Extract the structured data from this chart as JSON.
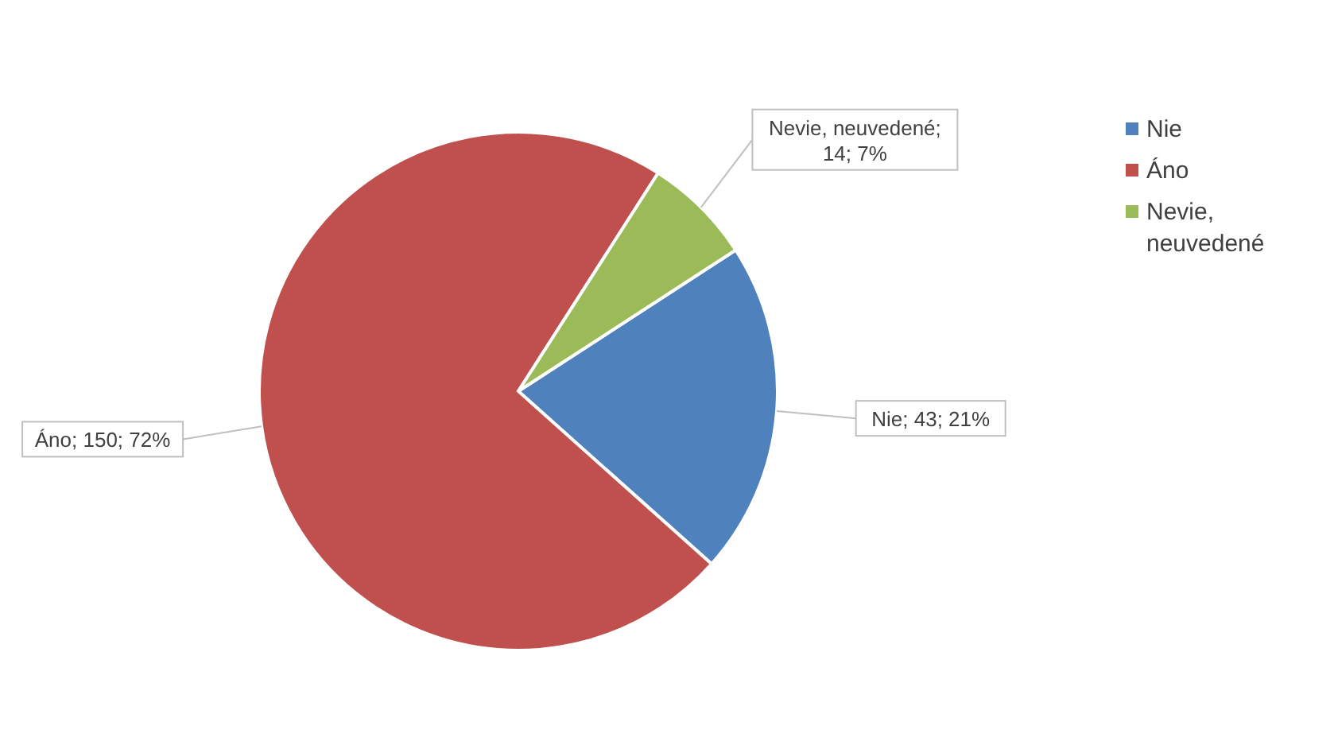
{
  "chart_data": {
    "type": "pie",
    "categories": [
      "Nie",
      "Áno",
      "Nevie, neuvedené"
    ],
    "values": [
      43,
      150,
      14
    ],
    "colors": [
      "#4f81bd",
      "#c0504d",
      "#9bbb59"
    ],
    "value_labels": [
      "Nie; 43; 21%",
      "Áno; 150; 72%",
      "Nevie, neuvedené; 14; 7%"
    ],
    "legend": "right"
  }
}
